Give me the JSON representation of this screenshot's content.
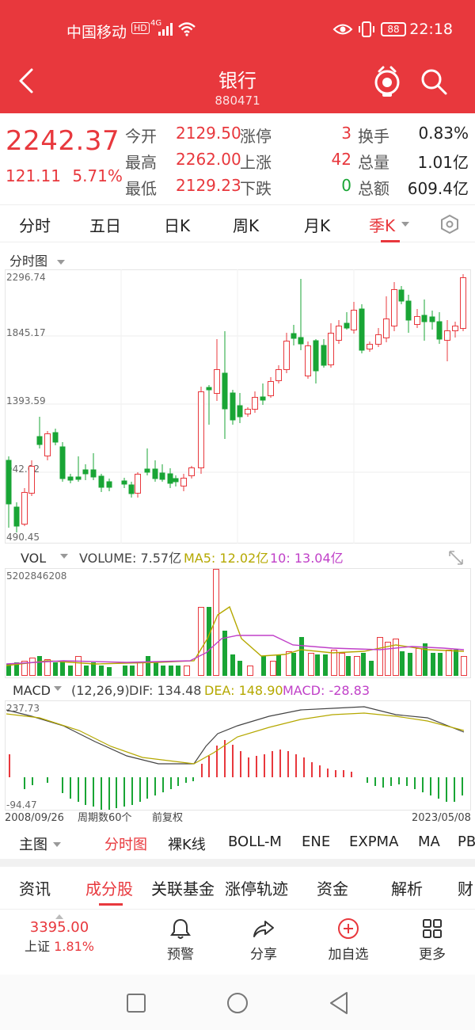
{
  "status_bar": {
    "carrier": "中国移动",
    "hd": "HD",
    "network": "4G",
    "battery": "88",
    "time": "22:18"
  },
  "header": {
    "title": "银行",
    "code": "880471"
  },
  "quote": {
    "price": "2242.37",
    "change": "121.11",
    "change_pct": "5.71%",
    "rows": [
      {
        "l1": "今开",
        "v1": "2129.50",
        "l2": "涨停",
        "v2": "3",
        "l3": "换手",
        "v3": "0.83%"
      },
      {
        "l1": "最高",
        "v1": "2262.00",
        "l2": "上涨",
        "v2": "42",
        "l3": "总量",
        "v3": "1.01亿"
      },
      {
        "l1": "最低",
        "v1": "2129.23",
        "l2": "下跌",
        "v2": "0",
        "l3": "总额",
        "v3": "609.4亿"
      }
    ]
  },
  "tabs": [
    "分时",
    "五日",
    "日K",
    "周K",
    "月K",
    "季K"
  ],
  "active_tab": "季K",
  "chart": {
    "label": "分时图",
    "y_ticks": [
      "2296.74",
      "1845.17",
      "1393.59",
      "942.02",
      "490.45"
    ],
    "vol_label": "VOL",
    "volume": "VOLUME: 7.57亿",
    "ma5": "MA5: 12.02亿",
    "ma10": "10: 13.04亿",
    "vol_top": "5202846208",
    "macd_label": "MACD",
    "macd_params": "(12,26,9)",
    "dif": "DIF: 134.48",
    "dea": "DEA: 148.90",
    "macd": "MACD: -28.83",
    "macd_top": "237.73",
    "macd_bottom": "-94.47",
    "date_start": "2008/09/26",
    "period_count": "周期数60个",
    "adjust": "前复权",
    "date_end": "2023/05/08",
    "colors": {
      "up": "#e8383d",
      "down": "#19a535",
      "ma5": "#b5a800",
      "ma10": "#c040c8",
      "dif": "#444444"
    }
  },
  "sub_toolbar": [
    "主图",
    "分时图",
    "裸K线",
    "BOLL-M",
    "ENE",
    "EXPMA",
    "MA",
    "PB"
  ],
  "info_tabs": [
    "资讯",
    "成分股",
    "关联基金",
    "涨停轨迹",
    "资金",
    "解析",
    "财"
  ],
  "bottom_bar": {
    "index_value": "3395.00",
    "index_name": "上证",
    "index_pct": "1.81%",
    "items": [
      "预警",
      "分享",
      "加自选",
      "更多"
    ]
  }
}
